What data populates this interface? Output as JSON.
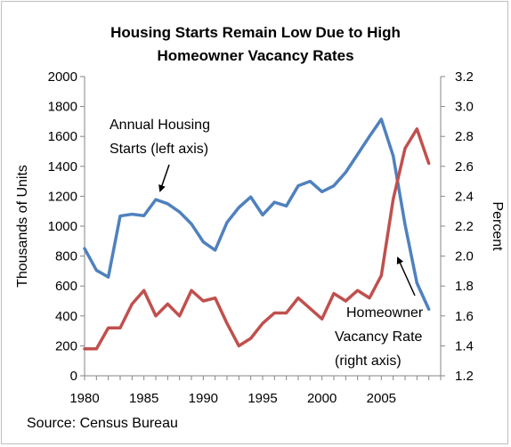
{
  "chart_data": {
    "type": "line",
    "title": [
      "Housing Starts Remain Low Due to High",
      "Homeowner Vacancy Rates"
    ],
    "ylabel_left": "Thousands of Units",
    "ylabel_right": "Percent",
    "x_ticks": [
      "1980",
      "1985",
      "1990",
      "1995",
      "2000",
      "2005"
    ],
    "x_range": [
      1980,
      2010
    ],
    "ylim_left": [
      0,
      2000
    ],
    "ylim_right": [
      1.2,
      3.2
    ],
    "y_ticks_left": [
      "2000",
      "1800",
      "1600",
      "1400",
      "1200",
      "1000",
      "800",
      "600",
      "400",
      "200",
      "0"
    ],
    "y_ticks_right": [
      "3.2",
      "3.0",
      "2.8",
      "2.6",
      "2.4",
      "2.2",
      "2.0",
      "1.8",
      "1.6",
      "1.4",
      "1.2"
    ],
    "grid": false,
    "series": [
      {
        "name": "Annual Housing Starts (left axis)",
        "axis": "left",
        "color": "#4f81bd",
        "x": [
          1980,
          1981,
          1982,
          1983,
          1984,
          1985,
          1986,
          1987,
          1988,
          1989,
          1990,
          1991,
          1992,
          1993,
          1994,
          1995,
          1996,
          1997,
          1998,
          1999,
          2000,
          2001,
          2002,
          2003,
          2004,
          2005,
          2006,
          2007,
          2008,
          2009
        ],
        "values": [
          850,
          705,
          660,
          1068,
          1080,
          1070,
          1178,
          1150,
          1095,
          1015,
          895,
          840,
          1025,
          1125,
          1195,
          1075,
          1160,
          1135,
          1270,
          1300,
          1230,
          1270,
          1360,
          1480,
          1600,
          1715,
          1470,
          1010,
          620,
          445
        ]
      },
      {
        "name": "Homeowner Vacancy Rate (right axis)",
        "axis": "right",
        "color": "#c0504d",
        "x": [
          1980,
          1981,
          1982,
          1983,
          1984,
          1985,
          1986,
          1987,
          1988,
          1989,
          1990,
          1991,
          1992,
          1993,
          1994,
          1995,
          1996,
          1997,
          1998,
          1999,
          2000,
          2001,
          2002,
          2003,
          2004,
          2005,
          2006,
          2007,
          2008,
          2009
        ],
        "values": [
          1.38,
          1.38,
          1.52,
          1.52,
          1.68,
          1.77,
          1.6,
          1.68,
          1.6,
          1.77,
          1.7,
          1.72,
          1.55,
          1.4,
          1.45,
          1.55,
          1.62,
          1.62,
          1.72,
          1.65,
          1.58,
          1.75,
          1.7,
          1.77,
          1.72,
          1.87,
          2.38,
          2.72,
          2.85,
          2.62
        ]
      }
    ],
    "annotations": [
      {
        "lines": [
          "Annual Housing",
          "Starts (left axis)"
        ]
      },
      {
        "lines": [
          "Homeowner",
          "Vacancy Rate",
          "(right axis)"
        ]
      }
    ],
    "source": "Source: Census Bureau"
  }
}
